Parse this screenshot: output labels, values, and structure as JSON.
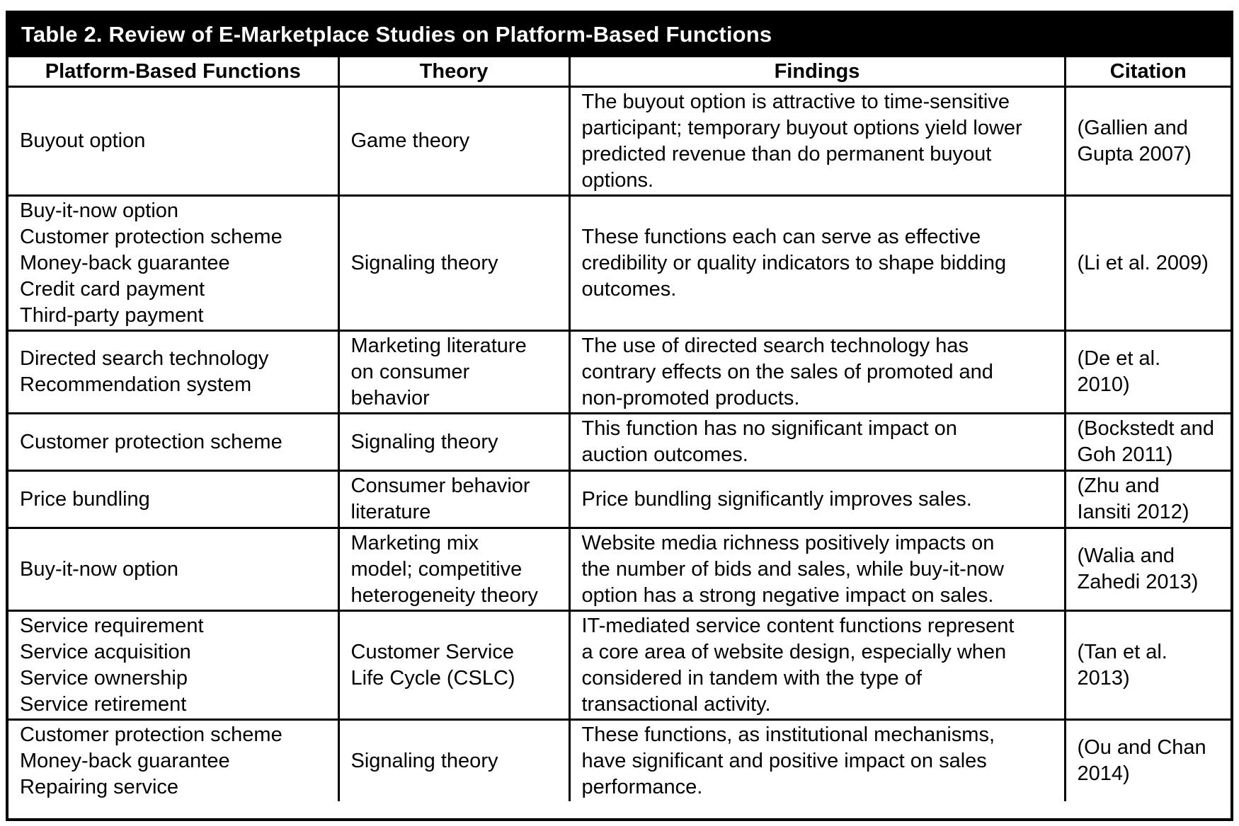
{
  "table": {
    "caption": "Table 2.  Review of E-Marketplace Studies on Platform-Based Functions",
    "headers": [
      "Platform-Based Functions",
      "Theory",
      "Findings",
      "Citation"
    ],
    "rows": [
      {
        "functions": [
          "Buyout option"
        ],
        "theory": [
          "Game theory"
        ],
        "findings": [
          "The buyout option is attractive to time-sensitive",
          "participant; temporary buyout options yield lower",
          "predicted revenue than do permanent buyout",
          "options."
        ],
        "citation": [
          "(Gallien and",
          "Gupta 2007)"
        ]
      },
      {
        "functions": [
          "Buy-it-now option",
          "Customer protection scheme",
          "Money-back guarantee",
          "Credit card payment",
          "Third-party payment"
        ],
        "theory": [
          "Signaling theory"
        ],
        "findings": [
          "These functions each can serve as effective",
          "credibility or quality indicators to shape bidding",
          "outcomes."
        ],
        "citation": [
          "(Li et al. 2009)"
        ]
      },
      {
        "functions": [
          "Directed search technology",
          "Recommendation system"
        ],
        "theory": [
          "Marketing literature",
          "on consumer",
          "behavior"
        ],
        "findings": [
          "The use of directed search technology has",
          "contrary effects on the sales of promoted and",
          "non-promoted products."
        ],
        "citation": [
          "(De et al.",
          "2010)"
        ]
      },
      {
        "functions": [
          "Customer protection scheme"
        ],
        "theory": [
          "Signaling theory"
        ],
        "findings": [
          "This function has no significant impact on",
          "auction outcomes."
        ],
        "citation": [
          "(Bockstedt and",
          "Goh 2011)"
        ]
      },
      {
        "functions": [
          "Price bundling"
        ],
        "theory": [
          "Consumer behavior",
          "literature"
        ],
        "findings": [
          "Price bundling significantly improves sales."
        ],
        "citation": [
          "(Zhu and",
          "Iansiti 2012)"
        ]
      },
      {
        "functions": [
          "Buy-it-now option"
        ],
        "theory": [
          "Marketing mix",
          "model; competitive",
          "heterogeneity theory"
        ],
        "findings": [
          "Website media richness positively impacts on",
          "the number of bids and sales, while buy-it-now",
          "option has a strong negative impact on sales."
        ],
        "citation": [
          "(Walia and",
          "Zahedi 2013)"
        ]
      },
      {
        "functions": [
          "Service requirement",
          "Service acquisition",
          "Service ownership",
          "Service retirement"
        ],
        "theory": [
          "Customer Service",
          "Life Cycle (CSLC)"
        ],
        "findings": [
          "IT-mediated service content functions represent",
          "a core area of website design, especially when",
          "considered in tandem with the type of",
          "transactional activity."
        ],
        "citation": [
          "(Tan et al.",
          "2013)"
        ]
      },
      {
        "functions": [
          "Customer protection scheme",
          "Money-back guarantee",
          "Repairing service"
        ],
        "theory": [
          "Signaling theory"
        ],
        "findings": [
          "These functions, as institutional mechanisms,",
          "have significant and positive impact on sales",
          "performance."
        ],
        "citation": [
          "(Ou and Chan",
          "2014)"
        ]
      }
    ]
  }
}
